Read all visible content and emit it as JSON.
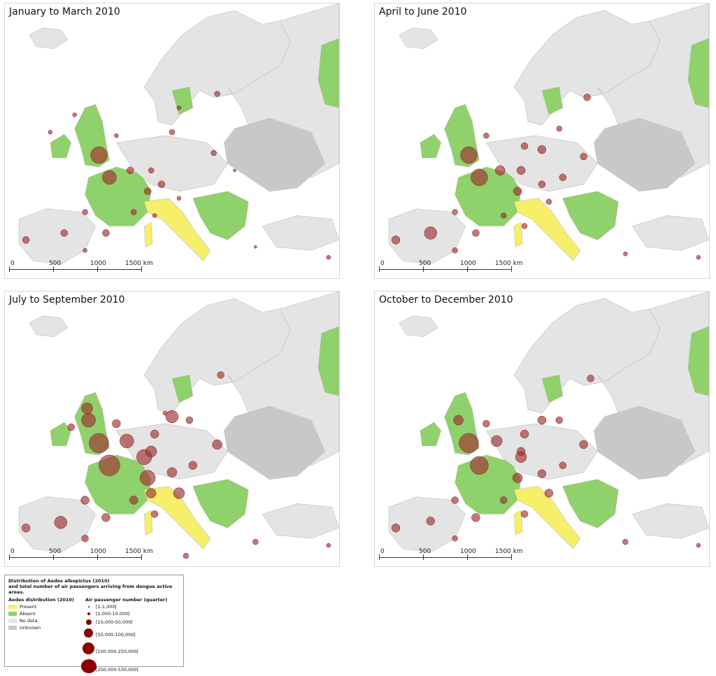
{
  "panels": [
    {
      "title": "January to March 2010"
    },
    {
      "title": "April to June 2010"
    },
    {
      "title": "July to September 2010"
    },
    {
      "title": "October to December 2010"
    }
  ],
  "scalebar": {
    "labels": [
      "0",
      "500",
      "1000",
      "1500 km"
    ]
  },
  "legend": {
    "title_line1": "Distribution of Aedes albopictus (2010)",
    "title_line2": "and total number of air passengers arriving from dengue active areas.",
    "aedes_header": "Aedes distribution (2010)",
    "passenger_header": "Air passenger number (quarter)",
    "aedes_classes": [
      {
        "label": "Present",
        "color": "#f5ef6a"
      },
      {
        "label": "Absent",
        "color": "#8fd16a"
      },
      {
        "label": "No data",
        "color": "#e4e4e4"
      },
      {
        "label": "Unknown",
        "color": "#c8c8c8"
      }
    ],
    "passenger_classes": [
      {
        "label": "[1-1,000["
      },
      {
        "label": "[1,000-10,000["
      },
      {
        "label": "[10,000-50,000["
      },
      {
        "label": "[50,000-100,000["
      },
      {
        "label": "[100,000-250,000["
      },
      {
        "label": "[250,000-530,000["
      }
    ]
  },
  "colors": {
    "present": "#f5ef6a",
    "absent": "#8fd16a",
    "nodata": "#e4e4e4",
    "unknown": "#c8c8c8",
    "sea": "#ffffff",
    "bubble": "#a0302f"
  }
}
